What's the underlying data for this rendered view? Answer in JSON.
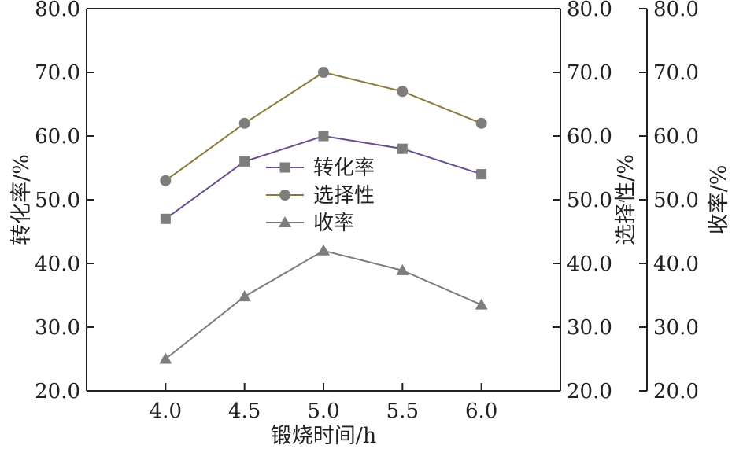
{
  "chart_data": {
    "type": "line",
    "xlabel": "锻烧时间/h",
    "x": [
      4.0,
      4.5,
      5.0,
      5.5,
      6.0
    ],
    "x_tick_labels": [
      "4.0",
      "4.5",
      "5.0",
      "5.5",
      "6.0"
    ],
    "xlim": [
      3.5,
      6.5
    ],
    "ylim": [
      20.0,
      80.0
    ],
    "y_tick_labels": [
      "20.0",
      "30.0",
      "40.0",
      "50.0",
      "60.0",
      "70.0",
      "80.0"
    ],
    "y_axes": [
      {
        "label": "转化率/%",
        "position": "left"
      },
      {
        "label": "选择性/%",
        "position": "right"
      },
      {
        "label": "收率/%",
        "position": "right-offset"
      }
    ],
    "legend_position": "center",
    "grid": false,
    "series": [
      {
        "name": "转化率",
        "marker": "square",
        "color": "#6a4d8f",
        "values": [
          47.0,
          56.0,
          60.0,
          58.0,
          54.0
        ]
      },
      {
        "name": "选择性",
        "marker": "circle",
        "color": "#8c7a3d",
        "values": [
          53.0,
          62.0,
          70.0,
          67.0,
          62.0
        ]
      },
      {
        "name": "收率",
        "marker": "triangle",
        "color": "#6a4d8f",
        "values": [
          25.0,
          34.8,
          42.0,
          38.9,
          33.5
        ]
      }
    ],
    "marker_fill": "#7d7d7d",
    "line_color_yield": "#7d7d7d",
    "axis_color": "#231f20"
  }
}
